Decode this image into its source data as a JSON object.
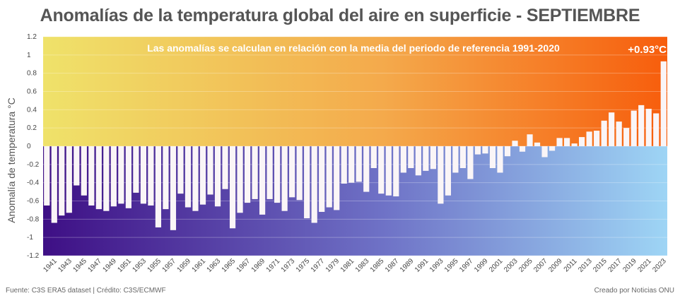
{
  "title": "Anomalías de la temperatura global del aire en superficie - SEPTIEMBRE",
  "footer": {
    "source": "Fuente: C3S ERA5 dataset | Crédito: C3S/ECMWF",
    "credit": "Creado por Noticias ONU"
  },
  "colors": {
    "warm_left": "#efe26a",
    "warm_mid": "#f4a94b",
    "warm_right": "#f75d0c",
    "cool_left": "#3e0f85",
    "cool_mid": "#6f73c7",
    "cool_right": "#9ed5f5",
    "bar": "#faf5f7"
  },
  "chart_data": {
    "type": "bar",
    "subtitle": "Las anomalías se calculan en relación con la media del periodo de referencia 1991-2020",
    "ylabel": "Anomalía de temperatura °C",
    "xlabel": "",
    "ylim": [
      -1.2,
      1.2
    ],
    "yticks": [
      -1.2,
      -1,
      -0.8,
      -0.6,
      -0.4,
      -0.2,
      0,
      0.2,
      0.4,
      0.6,
      0.8,
      1,
      1.2
    ],
    "ytick_labels": [
      "-1.2",
      "-1",
      "-0.8",
      "-0.6",
      "-0.4",
      "-0.2",
      "0",
      "0.2",
      "0.4",
      "0.6",
      "0.8",
      "1",
      "1.2"
    ],
    "highlight_label": "+0.93°C",
    "categories": [
      1940,
      1941,
      1942,
      1943,
      1944,
      1945,
      1946,
      1947,
      1948,
      1949,
      1950,
      1951,
      1952,
      1953,
      1954,
      1955,
      1956,
      1957,
      1958,
      1959,
      1960,
      1961,
      1962,
      1963,
      1964,
      1965,
      1966,
      1967,
      1968,
      1969,
      1970,
      1971,
      1972,
      1973,
      1974,
      1975,
      1976,
      1977,
      1978,
      1979,
      1980,
      1981,
      1982,
      1983,
      1984,
      1985,
      1986,
      1987,
      1988,
      1989,
      1990,
      1991,
      1992,
      1993,
      1994,
      1995,
      1996,
      1997,
      1998,
      1999,
      2000,
      2001,
      2002,
      2003,
      2004,
      2005,
      2006,
      2007,
      2008,
      2009,
      2010,
      2011,
      2012,
      2013,
      2014,
      2015,
      2016,
      2017,
      2018,
      2019,
      2020,
      2021,
      2022,
      2023
    ],
    "xtick_labels": [
      "1941",
      "1943",
      "1945",
      "1947",
      "1949",
      "1951",
      "1953",
      "1955",
      "1957",
      "1959",
      "1961",
      "1963",
      "1965",
      "1967",
      "1969",
      "1971",
      "1973",
      "1975",
      "1977",
      "1979",
      "1981",
      "1983",
      "1985",
      "1987",
      "1989",
      "1991",
      "1993",
      "1995",
      "1997",
      "1999",
      "2001",
      "2003",
      "2005",
      "2007",
      "2009",
      "2011",
      "2013",
      "2015",
      "2017",
      "2019",
      "2021",
      "2023"
    ],
    "values": [
      -0.65,
      -0.84,
      -0.76,
      -0.73,
      -0.43,
      -0.54,
      -0.65,
      -0.69,
      -0.71,
      -0.66,
      -0.63,
      -0.68,
      -0.51,
      -0.63,
      -0.65,
      -0.89,
      -0.69,
      -0.92,
      -0.52,
      -0.67,
      -0.71,
      -0.64,
      -0.53,
      -0.66,
      -0.47,
      -0.9,
      -0.73,
      -0.62,
      -0.58,
      -0.75,
      -0.58,
      -0.62,
      -0.71,
      -0.56,
      -0.59,
      -0.79,
      -0.84,
      -0.72,
      -0.67,
      -0.7,
      -0.41,
      -0.4,
      -0.39,
      -0.5,
      -0.24,
      -0.52,
      -0.54,
      -0.55,
      -0.29,
      -0.24,
      -0.32,
      -0.27,
      -0.25,
      -0.63,
      -0.54,
      -0.29,
      -0.24,
      -0.36,
      -0.09,
      -0.08,
      -0.24,
      -0.29,
      -0.11,
      0.06,
      -0.06,
      0.13,
      0.04,
      -0.12,
      -0.05,
      0.09,
      0.09,
      0.03,
      0.1,
      0.16,
      0.17,
      0.28,
      0.37,
      0.27,
      0.2,
      0.39,
      0.45,
      0.41,
      0.36,
      0.93
    ]
  }
}
